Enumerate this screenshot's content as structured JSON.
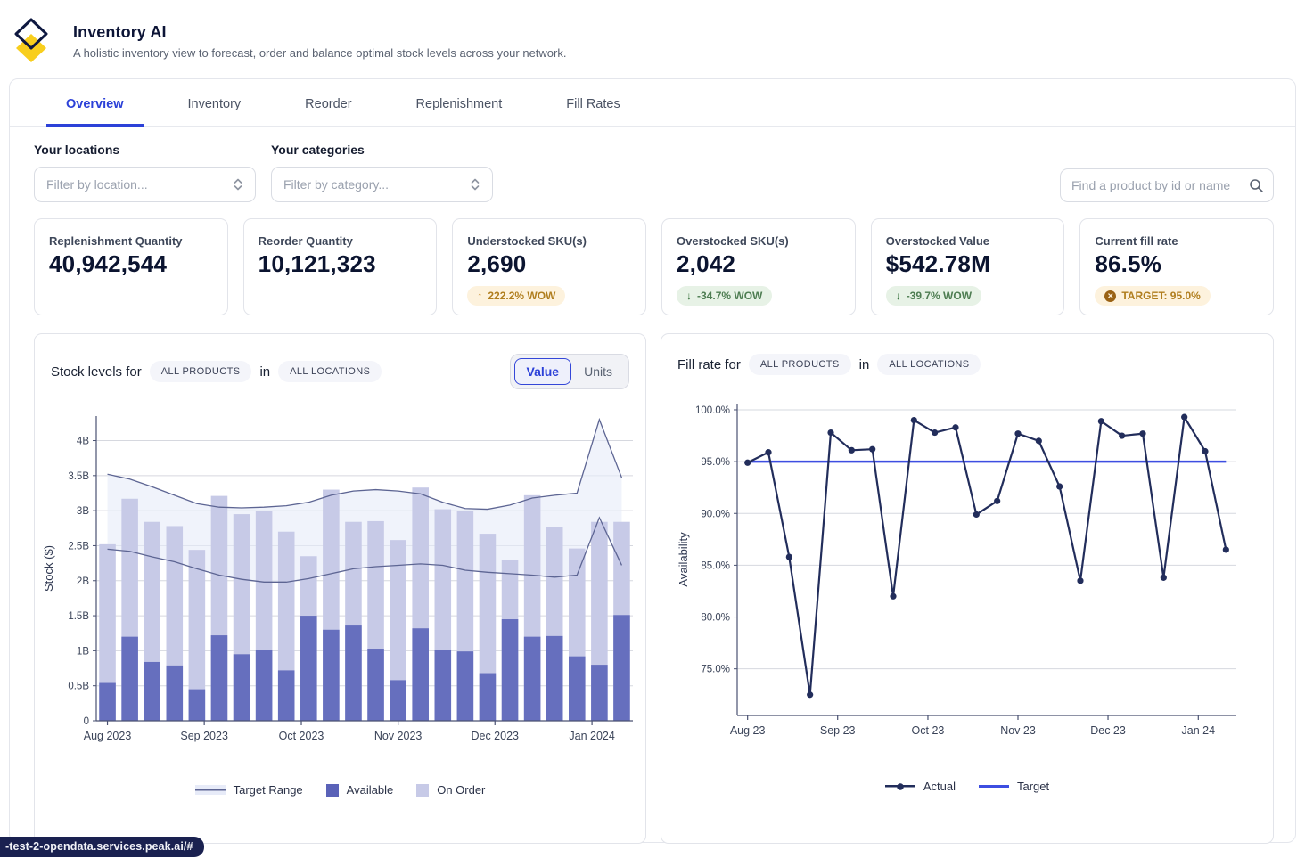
{
  "page": {
    "url_status": "-test-2-opendata.services.peak.ai/#"
  },
  "header": {
    "title": "Inventory AI",
    "subtitle": "A holistic inventory view to forecast, order and balance optimal stock levels across your network."
  },
  "tabs": [
    {
      "label": "Overview",
      "active": true
    },
    {
      "label": "Inventory",
      "active": false
    },
    {
      "label": "Reorder",
      "active": false
    },
    {
      "label": "Replenishment",
      "active": false
    },
    {
      "label": "Fill Rates",
      "active": false
    }
  ],
  "filters": {
    "locations_label": "Your locations",
    "locations_placeholder": "Filter by location...",
    "categories_label": "Your categories",
    "categories_placeholder": "Filter by category...",
    "search_placeholder": "Find a product by id or name"
  },
  "kpis": [
    {
      "label": "Replenishment Quantity",
      "value": "40,942,544"
    },
    {
      "label": "Reorder Quantity",
      "value": "10,121,323"
    },
    {
      "label": "Understocked SKU(s)",
      "value": "2,690",
      "badge": {
        "arrow": "↑",
        "text": "222.2% WOW",
        "tone": "amber"
      }
    },
    {
      "label": "Overstocked SKU(s)",
      "value": "2,042",
      "badge": {
        "arrow": "↓",
        "text": "-34.7% WOW",
        "tone": "green"
      }
    },
    {
      "label": "Overstocked Value",
      "value": "$542.78M",
      "badge": {
        "arrow": "↓",
        "text": "-39.7% WOW",
        "tone": "green"
      }
    },
    {
      "label": "Current fill rate",
      "value": "86.5%",
      "badge": {
        "icon": "✕",
        "text": "TARGET: 95.0%",
        "tone": "amber"
      }
    }
  ],
  "stock_chart": {
    "title_prefix": "Stock levels for",
    "pill_products": "ALL PRODUCTS",
    "conjunction": "in",
    "pill_locations": "ALL LOCATIONS",
    "toggle": {
      "value_label": "Value",
      "units_label": "Units",
      "active": "Value"
    },
    "legend": {
      "target_range": "Target Range",
      "available": "Available",
      "on_order": "On Order"
    }
  },
  "fill_chart": {
    "title_prefix": "Fill rate for",
    "pill_products": "ALL PRODUCTS",
    "conjunction": "in",
    "pill_locations": "ALL LOCATIONS",
    "legend": {
      "actual": "Actual",
      "target": "Target"
    }
  },
  "colors": {
    "accent_blue": "#2c41d8",
    "target_blue": "#3d4ee1",
    "actual_line": "#222d5b",
    "bar_dark": "#666fbe",
    "bar_light": "#c7cae7",
    "band_fill": "#e7ebf8",
    "band_line": "#5d6593",
    "grid": "#d6d8df",
    "axis": "#4a5272",
    "logo_yellow": "#f8ce1d",
    "logo_navy": "#0e1840",
    "badge_amber_bg": "#fdf2dd",
    "badge_amber_text": "#b07e1e",
    "badge_green_bg": "#e7f2e6",
    "badge_green_text": "#4e7d52"
  },
  "chart_data": [
    {
      "type": "bar",
      "title": "Stock levels for ALL PRODUCTS in ALL LOCATIONS",
      "xlabel": "",
      "ylabel": "Stock ($)",
      "unit": "billions of dollars",
      "ylim": [
        0,
        4.35
      ],
      "yticks": [
        0,
        0.5,
        1,
        1.5,
        2,
        2.5,
        3,
        3.5,
        4
      ],
      "ytick_labels": [
        "0",
        "0.5B",
        "1B",
        "1.5B",
        "2B",
        "2.5B",
        "3B",
        "3.5B",
        "4B"
      ],
      "x_months": [
        "Aug 2023",
        "Sep 2023",
        "Oct 2023",
        "Nov 2023",
        "Dec 2023",
        "Jan 2024"
      ],
      "month_tick_index": [
        0,
        4.33,
        8.67,
        13,
        17.33,
        21.67
      ],
      "grid": true,
      "legend_position": "bottom",
      "series": [
        {
          "name": "Available",
          "values": [
            0.54,
            1.2,
            0.84,
            0.79,
            0.45,
            1.22,
            0.95,
            1.01,
            0.72,
            1.5,
            1.3,
            1.36,
            1.03,
            0.58,
            1.32,
            1.01,
            0.99,
            0.68,
            1.45,
            1.2,
            1.21,
            0.92,
            0.8,
            1.51
          ]
        },
        {
          "name": "On Order",
          "values": [
            1.98,
            1.97,
            2.0,
            1.99,
            1.99,
            1.99,
            2.0,
            1.99,
            1.98,
            0.85,
            2.0,
            1.48,
            1.82,
            2.0,
            2.01,
            2.01,
            2.01,
            1.99,
            0.85,
            2.02,
            1.55,
            1.54,
            2.04,
            1.33
          ]
        },
        {
          "name": "Target Range Upper",
          "values": [
            3.52,
            3.45,
            3.34,
            3.22,
            3.1,
            3.05,
            3.04,
            3.05,
            3.07,
            3.12,
            3.22,
            3.28,
            3.3,
            3.28,
            3.24,
            3.12,
            3.03,
            3.02,
            3.08,
            3.18,
            3.22,
            3.25,
            4.3,
            3.47
          ]
        },
        {
          "name": "Target Range Lower",
          "values": [
            2.45,
            2.42,
            2.34,
            2.27,
            2.17,
            2.08,
            2.02,
            1.98,
            1.98,
            2.03,
            2.1,
            2.17,
            2.2,
            2.22,
            2.24,
            2.22,
            2.15,
            2.12,
            2.1,
            2.08,
            2.05,
            2.08,
            2.9,
            2.22
          ]
        }
      ]
    },
    {
      "type": "line",
      "title": "Fill rate for ALL PRODUCTS in ALL LOCATIONS",
      "xlabel": "",
      "ylabel": "Availability",
      "ylim": [
        70.5,
        100.6
      ],
      "yticks": [
        75,
        80,
        85,
        90,
        95,
        100
      ],
      "ytick_labels": [
        "75.0%",
        "80.0%",
        "85.0%",
        "90.0%",
        "95.0%",
        "100.0%"
      ],
      "x_months": [
        "Aug 23",
        "Sep 23",
        "Oct 23",
        "Nov 23",
        "Dec 23",
        "Jan 24"
      ],
      "month_tick_index": [
        0,
        4.33,
        8.67,
        13,
        17.33,
        21.67
      ],
      "grid": true,
      "legend_position": "bottom",
      "series": [
        {
          "name": "Actual",
          "values": [
            94.9,
            95.9,
            85.8,
            72.5,
            97.8,
            96.1,
            96.2,
            82.0,
            99.0,
            97.8,
            98.3,
            89.9,
            91.2,
            97.7,
            97.0,
            92.6,
            83.5,
            98.9,
            97.5,
            97.7,
            83.8,
            99.3,
            96.0,
            86.5
          ]
        },
        {
          "name": "Target",
          "constant": 95.0
        }
      ]
    }
  ]
}
